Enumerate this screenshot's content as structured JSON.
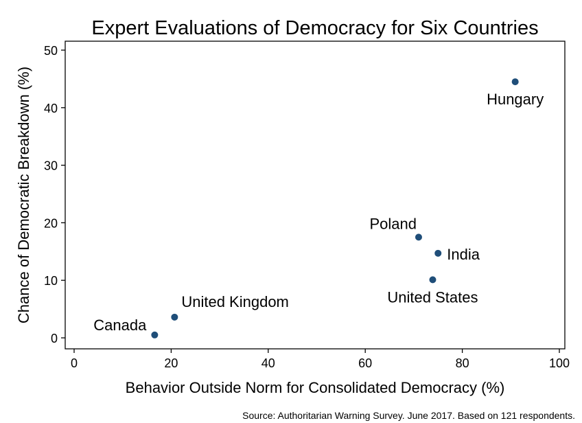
{
  "chart_data": {
    "type": "scatter",
    "title": "Expert Evaluations of Democracy for Six Countries",
    "xlabel": "Behavior Outside Norm for Consolidated Democracy (%)",
    "ylabel": "Chance of Democratic Breakdown (%)",
    "xlim": [
      0,
      100
    ],
    "ylim": [
      0,
      50
    ],
    "xticks": [
      0,
      20,
      40,
      60,
      80,
      100
    ],
    "yticks": [
      0,
      10,
      20,
      30,
      40,
      50
    ],
    "grid": false,
    "marker_color": "#1f4e79",
    "points": [
      {
        "label": "Canada",
        "x": 16.6,
        "y": 0.5,
        "label_pos": "left"
      },
      {
        "label": "United Kingdom",
        "x": 20.7,
        "y": 3.6,
        "label_pos": "above-right"
      },
      {
        "label": "Poland",
        "x": 71,
        "y": 17.5,
        "label_pos": "above-left"
      },
      {
        "label": "India",
        "x": 75,
        "y": 14.7,
        "label_pos": "right"
      },
      {
        "label": "United States",
        "x": 73.9,
        "y": 10.1,
        "label_pos": "below"
      },
      {
        "label": "Hungary",
        "x": 90.9,
        "y": 44.5,
        "label_pos": "below"
      }
    ],
    "note": "Source: Authoritarian Warning Survey. June 2017. Based on 121 respondents."
  }
}
